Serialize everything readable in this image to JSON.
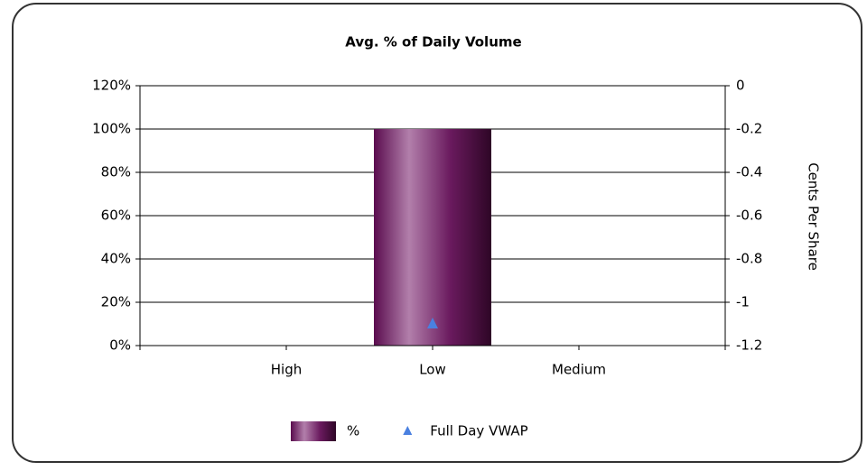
{
  "chart_data": {
    "type": "bar",
    "title": "Avg. % of Daily Volume",
    "y2label": "Cents Per Share",
    "categories": [
      "High",
      "Low",
      "Medium"
    ],
    "series": [
      {
        "name": "%",
        "type": "bar",
        "color": "#6a1a5e",
        "values": [
          null,
          100,
          null
        ]
      },
      {
        "name": "Full Day VWAP",
        "type": "scatter",
        "axis": "y2",
        "color": "#4a80e0",
        "values": [
          null,
          -1.1,
          null
        ]
      }
    ],
    "ylim": [
      0,
      120
    ],
    "yticks": [
      {
        "value": 0,
        "label": "0%"
      },
      {
        "value": 20,
        "label": "20%"
      },
      {
        "value": 40,
        "label": "40%"
      },
      {
        "value": 60,
        "label": "60%"
      },
      {
        "value": 80,
        "label": "80%"
      },
      {
        "value": 100,
        "label": "100%"
      },
      {
        "value": 120,
        "label": "120%"
      }
    ],
    "y2lim": [
      -1.2,
      0
    ],
    "y2ticks": [
      -1.2,
      -1,
      -0.8,
      -0.6,
      -0.4,
      -0.2,
      0
    ],
    "grid": true,
    "legend": "bottom"
  }
}
